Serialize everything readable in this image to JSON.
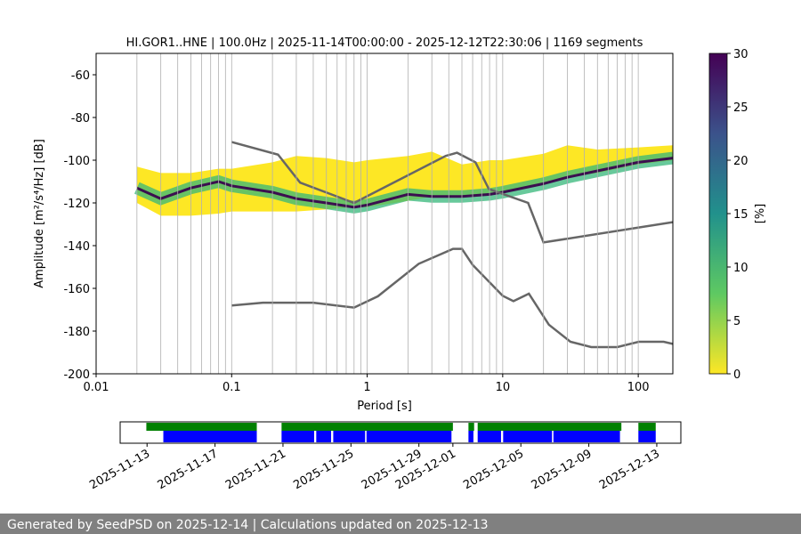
{
  "chart_data": [
    {
      "type": "ppsd",
      "title": "HI.GOR1..HNE | 100.0Hz | 2025-11-14T00:00:00 - 2025-12-12T22:30:06 | 1169 segments",
      "x_label": "Period [s]",
      "y_label": "Amplitude [m²/s⁴/Hz] [dB]",
      "x_scale": "log",
      "xlim": [
        0.01,
        180
      ],
      "ylim": [
        -200,
        -50
      ],
      "xticks": [
        0.01,
        0.1,
        1,
        10,
        100
      ],
      "xminorticks": [
        0.02,
        0.03,
        0.04,
        0.05,
        0.06,
        0.07,
        0.08,
        0.09,
        0.2,
        0.3,
        0.4,
        0.5,
        0.6,
        0.7,
        0.8,
        0.9,
        2,
        3,
        4,
        5,
        6,
        7,
        8,
        9,
        20,
        30,
        40,
        50,
        60,
        70,
        80,
        90
      ],
      "yticks": [
        -200,
        -180,
        -160,
        -140,
        -120,
        -100,
        -80,
        -60
      ],
      "grid": "x",
      "density": {
        "x": [
          0.02,
          0.03,
          0.05,
          0.08,
          0.1,
          0.2,
          0.3,
          0.5,
          0.8,
          1,
          2,
          3,
          5,
          8,
          10,
          20,
          30,
          50,
          100,
          180
        ],
        "high": [
          -103,
          -106,
          -106,
          -104,
          -104,
          -101,
          -98,
          -99,
          -101,
          -100,
          -98,
          -96,
          -102,
          -100,
          -100,
          -97,
          -93,
          -95,
          -94,
          -93
        ],
        "low": [
          -120,
          -126,
          -126,
          -125,
          -124,
          -124,
          -124,
          -123,
          -122,
          -122,
          -119,
          -117,
          -117,
          -116,
          -115,
          -111,
          -108,
          -106,
          -102,
          -100
        ],
        "mode": [
          -113,
          -118,
          -113,
          -110,
          -112,
          -115,
          -118,
          -120,
          -122,
          -121,
          -116,
          -117,
          -117,
          -116,
          -115,
          -111,
          -108,
          -105,
          -101,
          -99
        ],
        "fill_color": "#fde725",
        "band_color": "#35b779",
        "mode_color": "#3b0f4f"
      },
      "series": [
        {
          "color": "#666666",
          "x": [
            0.1,
            0.22,
            0.32,
            0.8,
            3.8,
            4.6,
            6.3,
            7.9,
            15.4,
            20,
            180
          ],
          "values": [
            -91.5,
            -97.4,
            -110.5,
            -120,
            -98,
            -96.5,
            -101,
            -113.5,
            -120,
            -138.5,
            -129
          ]
        },
        {
          "color": "#666666",
          "x": [
            0.1,
            0.17,
            0.4,
            0.8,
            1.2,
            2.4,
            4.3,
            5,
            6,
            10,
            12,
            15.6,
            21.9,
            31.6,
            45,
            70,
            101,
            154,
            180
          ],
          "values": [
            -168,
            -166.7,
            -166.7,
            -169,
            -163.7,
            -148.5,
            -141.5,
            -141.5,
            -149,
            -163.5,
            -166,
            -162.5,
            -177,
            -185,
            -187.5,
            -187.5,
            -185,
            -185,
            -186
          ]
        }
      ],
      "colorbar": {
        "label": "[%]",
        "clim": [
          0,
          30
        ],
        "ticks": [
          0,
          5,
          10,
          15,
          20,
          25,
          30
        ],
        "colormap": [
          "#fde725",
          "#5ec962",
          "#21918c",
          "#3b528b",
          "#440154"
        ]
      }
    },
    {
      "type": "timeline",
      "xlim": [
        "2025-11-11T10:00:00",
        "2025-12-14T10:00:00"
      ],
      "xticks": [
        "2025-11-13",
        "2025-11-17",
        "2025-11-21",
        "2025-11-25",
        "2025-11-29",
        "2025-12-01",
        "2025-12-05",
        "2025-12-09",
        "2025-12-13"
      ],
      "series": [
        {
          "color": "#008000",
          "intervals": [
            [
              "2025-11-12T23:00:00",
              "2025-11-19T11:00:00"
            ],
            [
              "2025-11-20T22:00:00",
              "2025-12-01T00:00:00"
            ],
            [
              "2025-12-01T22:00:00",
              "2025-12-02T06:00:00"
            ],
            [
              "2025-12-02T11:00:00",
              "2025-12-10T22:00:00"
            ],
            [
              "2025-12-11T22:00:00",
              "2025-12-12T22:30:00"
            ]
          ]
        },
        {
          "color": "#0000ff",
          "intervals": [
            [
              "2025-11-13T23:00:00",
              "2025-11-19T11:00:00"
            ],
            [
              "2025-11-20T22:00:00",
              "2025-11-22T20:00:00"
            ],
            [
              "2025-11-22T23:00:00",
              "2025-11-23T20:00:00"
            ],
            [
              "2025-11-23T23:00:00",
              "2025-11-25T20:00:00"
            ],
            [
              "2025-11-25T22:00:00",
              "2025-11-30T22:00:00"
            ],
            [
              "2025-12-01T22:00:00",
              "2025-12-02T05:00:00"
            ],
            [
              "2025-12-02T11:00:00",
              "2025-12-03T20:00:00"
            ],
            [
              "2025-12-03T23:00:00",
              "2025-12-06T20:00:00"
            ],
            [
              "2025-12-06T22:00:00",
              "2025-12-10T20:00:00"
            ],
            [
              "2025-12-11T22:00:00",
              "2025-12-12T22:30:00"
            ]
          ]
        }
      ]
    }
  ],
  "footer": "Generated by SeedPSD on 2025-12-14 | Calculations updated on 2025-12-13"
}
